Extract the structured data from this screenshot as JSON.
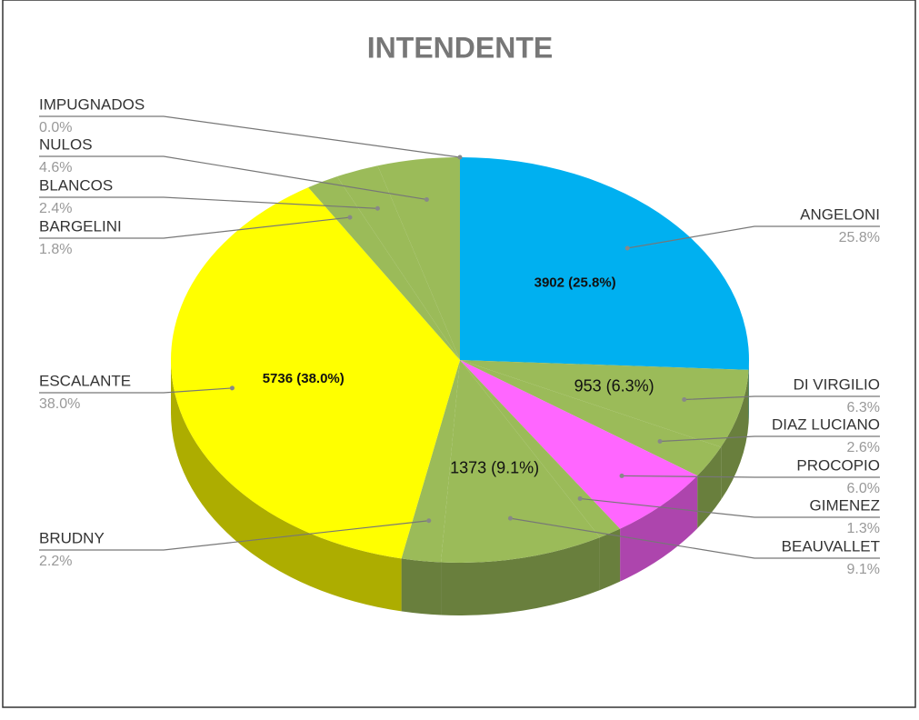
{
  "chart_data": {
    "type": "pie3d",
    "title": "INTENDENTE",
    "categories": [
      "ANGELONI",
      "DI VIRGILIO",
      "DIAZ LUCIANO",
      "PROCOPIO",
      "GIMENEZ",
      "BEAUVALLET",
      "BRUDNY",
      "ESCALANTE",
      "BARGELINI",
      "BLANCOS",
      "NULOS",
      "IMPUGNADOS"
    ],
    "values": [
      25.8,
      6.3,
      2.6,
      6.0,
      1.3,
      9.1,
      2.2,
      38.0,
      1.8,
      2.4,
      4.6,
      0.0
    ],
    "value_labels": [
      "25.8%",
      "6.3%",
      "2.6%",
      "6.0%",
      "1.3%",
      "9.1%",
      "2.2%",
      "38.0%",
      "1.8%",
      "2.4%",
      "4.6%",
      "0.0%"
    ],
    "inner_labels": [
      "3902 (25.8%)",
      "953 (6.3%)",
      null,
      null,
      null,
      "1373 (9.1%)",
      null,
      "5736 (38.0%)",
      null,
      null,
      null,
      null
    ],
    "colors": [
      "#00b0f0",
      "#9bbb59",
      "#9bbb59",
      "#ff66ff",
      "#9bbb59",
      "#9bbb59",
      "#9bbb59",
      "#ffff00",
      "#9bbb59",
      "#9bbb59",
      "#9bbb59",
      "#9bbb59"
    ]
  }
}
